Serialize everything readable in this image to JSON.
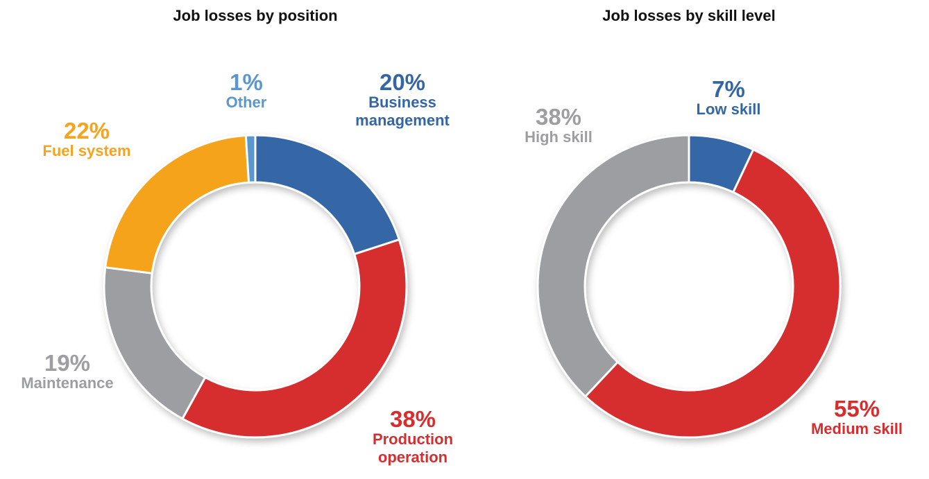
{
  "chart_data": [
    {
      "type": "donut",
      "title": "Job losses by position",
      "categories": [
        "Business management",
        "Production operation",
        "Maintenance",
        "Fuel system",
        "Other"
      ],
      "values": [
        20,
        38,
        19,
        22,
        1
      ],
      "value_labels": [
        "20%",
        "38%",
        "19%",
        "22%",
        "1%"
      ],
      "colors": [
        "#3466a5",
        "#d62d2f",
        "#9d9ea2",
        "#f6a31f",
        "#5a97cf"
      ]
    },
    {
      "type": "donut",
      "title": "Job losses by skill level",
      "categories": [
        "Low skill",
        "Medium skill",
        "High skill"
      ],
      "values": [
        7,
        55,
        38
      ],
      "value_labels": [
        "7%",
        "55%",
        "38%"
      ],
      "colors": [
        "#3466a5",
        "#d62d2f",
        "#9d9ea2"
      ]
    }
  ]
}
